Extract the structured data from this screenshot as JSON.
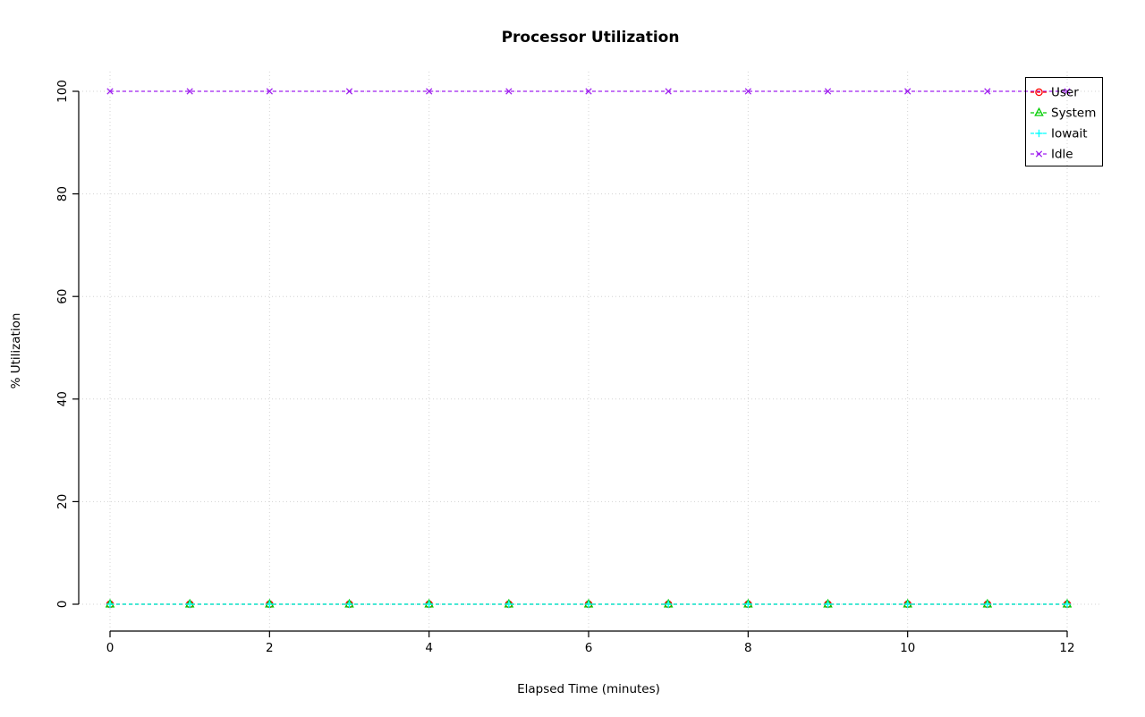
{
  "chart_data": {
    "type": "line",
    "title": "Processor Utilization",
    "xlabel": "Elapsed Time (minutes)",
    "ylabel": "% Utilization",
    "xlim": [
      0,
      12
    ],
    "ylim": [
      0,
      100
    ],
    "x_ticks": [
      0,
      2,
      4,
      6,
      8,
      10,
      12
    ],
    "y_ticks": [
      0,
      20,
      40,
      60,
      80,
      100
    ],
    "grid": true,
    "grid_color": "#d3d3d3",
    "axis_color": "#000000",
    "line_style": "dashed",
    "legend_position": "top-right",
    "x": [
      0,
      1,
      2,
      3,
      4,
      5,
      6,
      7,
      8,
      9,
      10,
      11,
      12
    ],
    "series": [
      {
        "name": "User",
        "color": "#ff0000",
        "marker": "circle",
        "values": [
          0,
          0,
          0,
          0,
          0,
          0,
          0,
          0,
          0,
          0,
          0,
          0,
          0
        ]
      },
      {
        "name": "System",
        "color": "#00cd00",
        "marker": "triangle",
        "values": [
          0,
          0,
          0,
          0,
          0,
          0,
          0,
          0,
          0,
          0,
          0,
          0,
          0
        ]
      },
      {
        "name": "Iowait",
        "color": "#00ffff",
        "marker": "plus",
        "values": [
          0,
          0,
          0,
          0,
          0,
          0,
          0,
          0,
          0,
          0,
          0,
          0,
          0
        ]
      },
      {
        "name": "Idle",
        "color": "#a020f0",
        "marker": "x",
        "values": [
          100,
          100,
          100,
          100,
          100,
          100,
          100,
          100,
          100,
          100,
          100,
          100,
          100
        ]
      }
    ]
  }
}
